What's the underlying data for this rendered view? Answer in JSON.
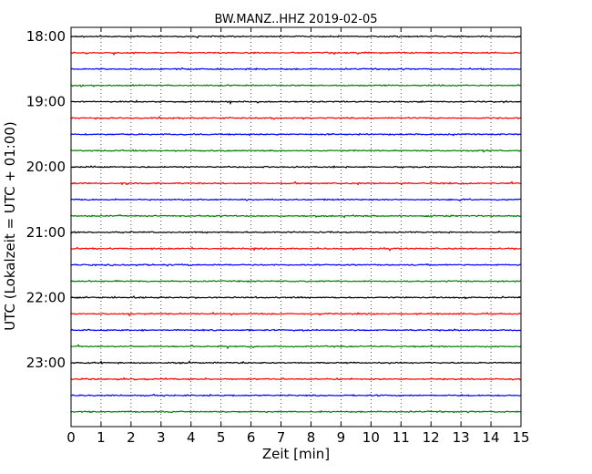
{
  "chart_data": {
    "type": "line",
    "title": "BW.MANZ..HHZ 2019-02-05",
    "xlabel": "Zeit  [min]",
    "ylabel": "UTC (Lokalzeit = UTC + 01:00)",
    "xlim": [
      0,
      15
    ],
    "x_ticks": [
      "0",
      "1",
      "2",
      "3",
      "4",
      "5",
      "6",
      "7",
      "8",
      "9",
      "10",
      "11",
      "12",
      "13",
      "14",
      "15"
    ],
    "y_ticks": [
      "18:00",
      "19:00",
      "20:00",
      "21:00",
      "22:00",
      "23:00"
    ],
    "grid": "vertical dotted",
    "series_colors": [
      "#000000",
      "#ff0000",
      "#0000ff",
      "#008000"
    ],
    "traces_per_hour": 4,
    "trace_count": 24
  }
}
